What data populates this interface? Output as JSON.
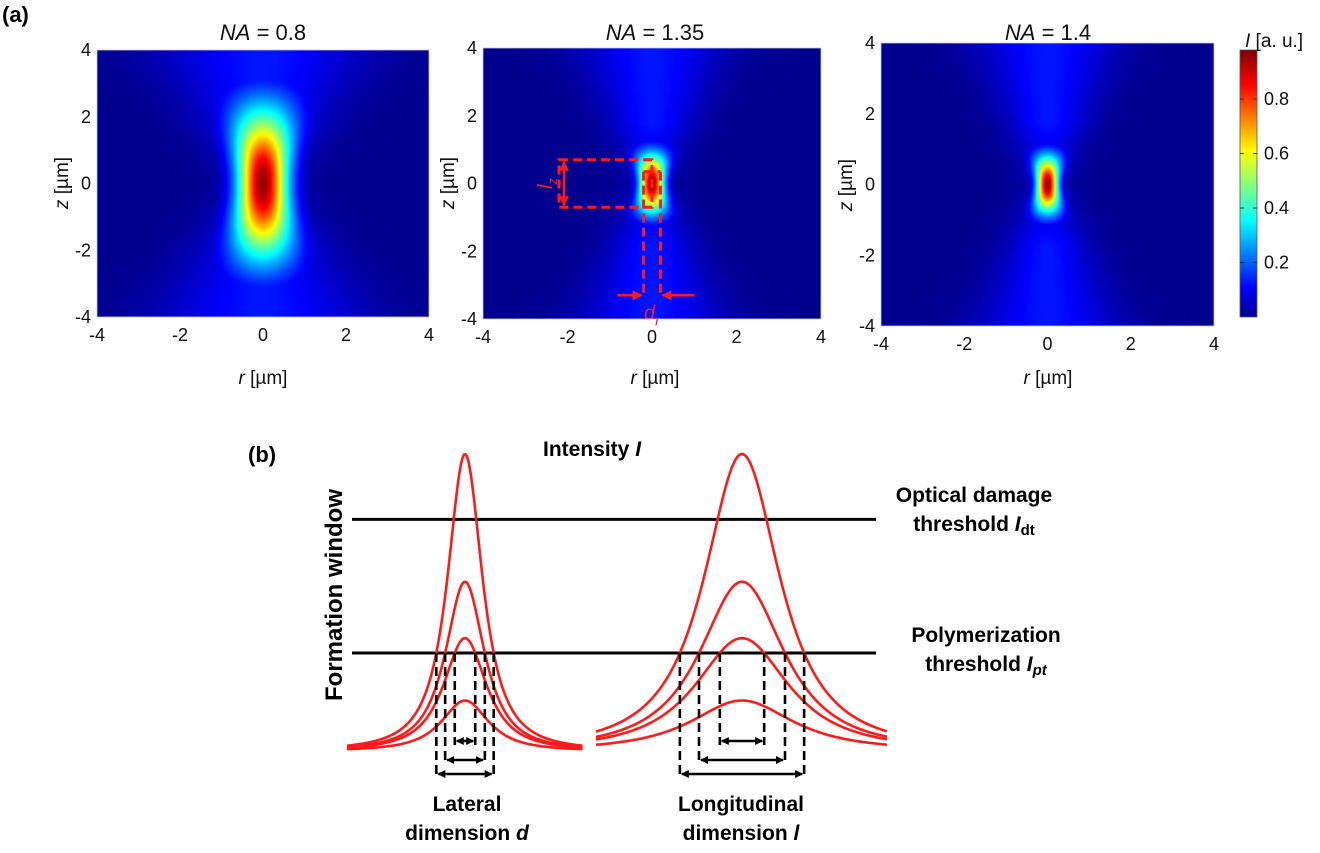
{
  "figure": {
    "panel_a_label": "(a)",
    "panel_b_label": "(b)"
  },
  "chart_data": [
    {
      "type": "heatmap",
      "title_italic": "NA",
      "title_rest": " = 0.8",
      "NA": 0.8,
      "xlabel_italic": "r",
      "xlabel_rest": " [µm]",
      "ylabel_italic": "z",
      "ylabel_rest": " [µm]",
      "xlim": [
        -4,
        4
      ],
      "ylim": [
        -4,
        4
      ],
      "xticks": [
        "-4",
        "-2",
        "0",
        "2",
        "4"
      ],
      "yticks": [
        "4",
        "2",
        "0",
        "-2",
        "-4"
      ],
      "colormap": "jet",
      "peak": {
        "r": 0,
        "z": 0,
        "I": 1.0
      },
      "lateral_sigma_um": 0.42,
      "axial_sigma_um": 1.55,
      "background_lobe_sigma_um": 0.75
    },
    {
      "type": "heatmap",
      "title_italic": "NA",
      "title_rest": " = 1.35",
      "NA": 1.35,
      "xlabel_italic": "r",
      "xlabel_rest": " [µm]",
      "ylabel_italic": "z",
      "ylabel_rest": " [µm]",
      "xlim": [
        -4,
        4
      ],
      "ylim": [
        -4,
        4
      ],
      "xticks": [
        "-4",
        "-2",
        "0",
        "2",
        "4"
      ],
      "yticks": [
        "4",
        "2",
        "0",
        "-2",
        "-4"
      ],
      "colormap": "jet",
      "peak": {
        "r": 0,
        "z": 0,
        "I": 1.0
      },
      "lateral_sigma_um": 0.2,
      "axial_sigma_um": 0.6,
      "background_lobe_sigma_um": 0.5,
      "annotations": {
        "lz_label_main": "l",
        "lz_label_sub": "z",
        "lz_range_um": [
          -0.7,
          0.7
        ],
        "dr_label_main": "d",
        "dr_label_sub": "r",
        "dr_range_um": [
          -0.2,
          0.2
        ],
        "color": "#ff1a1a"
      }
    },
    {
      "type": "heatmap",
      "title_italic": "NA",
      "title_rest": " = 1.4",
      "NA": 1.4,
      "xlabel_italic": "r",
      "xlabel_rest": " [µm]",
      "ylabel_italic": "z",
      "ylabel_rest": " [µm]",
      "xlim": [
        -4,
        4
      ],
      "ylim": [
        -4,
        4
      ],
      "xticks": [
        "-4",
        "-2",
        "0",
        "2",
        "4"
      ],
      "yticks": [
        "4",
        "2",
        "0",
        "-2",
        "-4"
      ],
      "colormap": "jet",
      "peak": {
        "r": 0,
        "z": 0,
        "I": 1.0
      },
      "lateral_sigma_um": 0.18,
      "axial_sigma_um": 0.55,
      "background_lobe_sigma_um": 0.5,
      "colorbar": {
        "label_italic": "I",
        "label_rest": " [a. u.]",
        "range": [
          0,
          0.98
        ],
        "ticks": [
          "0.8",
          "0.6",
          "0.4",
          "0.2"
        ],
        "tick_values": [
          0.8,
          0.6,
          0.4,
          0.2
        ]
      }
    },
    {
      "type": "line",
      "title": "Intensity I",
      "title_main": "Intensity ",
      "title_italic": "I",
      "ylabel": "Formation window",
      "thresholds": [
        {
          "name": "Optical damage threshold I_dt",
          "line1": "Optical damage",
          "line2_main": "threshold ",
          "line2_italic": "I",
          "line2_sub": "dt",
          "value": 0.78
        },
        {
          "name": "Polymerization threshold I_pt",
          "line1": "Polymerization",
          "line2_main": "threshold ",
          "line2_italic": "I",
          "line2_sub": "pt",
          "value": 0.33
        }
      ],
      "series_color": "#ff1a1a",
      "groups": [
        {
          "name": "Lateral dimension d",
          "xlabel_line1": "Lateral",
          "xlabel_line2_main": "dimension ",
          "xlabel_line2_italic": "d",
          "profile": "lorentzian-like narrow",
          "peaks": [
            1.0,
            0.57,
            0.38,
            0.17
          ],
          "width_param": 0.55,
          "dimension_arrows": 3
        },
        {
          "name": "Longitudinal dimension l",
          "xlabel_line1": "Longitudinal",
          "xlabel_line2_main": "dimension ",
          "xlabel_line2_italic": "l",
          "profile": "lorentzian-like wide",
          "peaks": [
            1.0,
            0.57,
            0.38,
            0.17
          ],
          "width_param": 1.0,
          "dimension_arrows": 3
        }
      ]
    }
  ]
}
